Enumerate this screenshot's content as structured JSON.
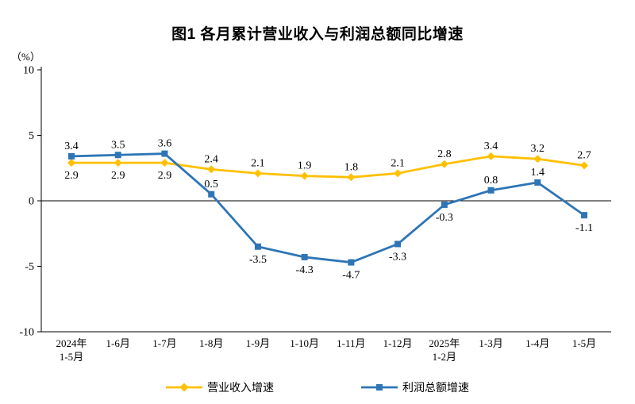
{
  "chart_data": {
    "type": "line",
    "title": "图1 各月累计营业收入与利润总额同比增速",
    "ylabel": "（%）",
    "ylim": [
      -10,
      10
    ],
    "yticks": [
      10,
      5,
      0,
      -5,
      -10
    ],
    "grid": false,
    "legend_position": "bottom",
    "categories": [
      "2024年\n1-5月",
      "1-6月",
      "1-7月",
      "1-8月",
      "1-9月",
      "1-10月",
      "1-11月",
      "1-12月",
      "2025年\n1-2月",
      "1-3月",
      "1-4月",
      "1-5月"
    ],
    "series": [
      {
        "name": "营业收入增速",
        "color": "#FFC000",
        "marker": "diamond",
        "values": [
          2.9,
          2.9,
          2.9,
          2.4,
          2.1,
          1.9,
          1.8,
          2.1,
          2.8,
          3.4,
          3.2,
          2.7
        ]
      },
      {
        "name": "利润总额增速",
        "color": "#2E75B6",
        "marker": "square",
        "values": [
          3.4,
          3.5,
          3.6,
          0.5,
          -3.5,
          -4.3,
          -4.7,
          -3.3,
          -0.3,
          0.8,
          1.4,
          -1.1
        ]
      }
    ]
  }
}
